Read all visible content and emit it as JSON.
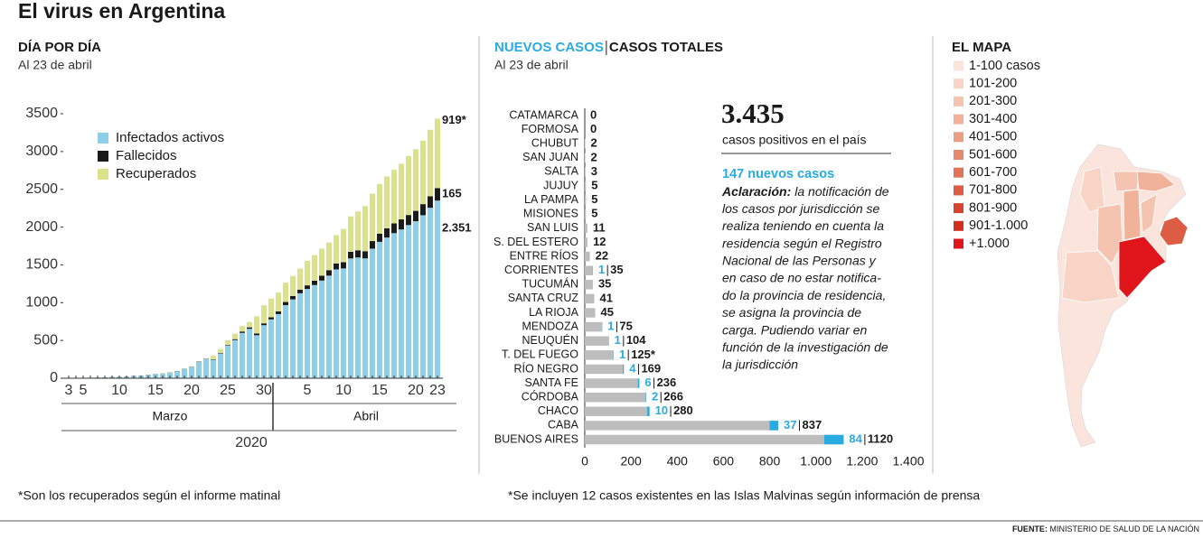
{
  "title": "El virus en Argentina",
  "chart_data": [
    {
      "type": "bar",
      "stacked": true,
      "title": "DÍA POR DÍA",
      "subtitle": "Al 23 de abril",
      "categories": [
        "3",
        null,
        "5",
        null,
        null,
        null,
        null,
        "10",
        null,
        null,
        null,
        null,
        "15",
        null,
        null,
        null,
        null,
        "20",
        null,
        null,
        null,
        null,
        "25",
        null,
        null,
        null,
        null,
        "30",
        null,
        null,
        null,
        null,
        null,
        "5",
        null,
        null,
        null,
        null,
        "10",
        null,
        null,
        null,
        null,
        "15",
        null,
        null,
        null,
        null,
        "20",
        null,
        null,
        "23"
      ],
      "periods": [
        "Marzo",
        "Abril"
      ],
      "year": "2020",
      "series": [
        {
          "name": "Infectados activos",
          "color": "#8dcfe9",
          "values": [
            1,
            1,
            2,
            8,
            8,
            11,
            15,
            17,
            19,
            29,
            32,
            42,
            53,
            60,
            74,
            91,
            121,
            150,
            216,
            255,
            244,
            329,
            431,
            505,
            600,
            654,
            569,
            702,
            779,
            849,
            967,
            1043,
            1124,
            1181,
            1233,
            1292,
            1358,
            1440,
            1453,
            1585,
            1598,
            1586,
            1715,
            1805,
            1862,
            1920,
            1969,
            2027,
            2078,
            2157,
            2256,
            2351
          ],
          "value_labels": [
            null,
            null,
            null,
            null,
            null,
            null,
            null,
            null,
            null,
            null,
            null,
            null,
            null,
            null,
            null,
            null,
            null,
            null,
            null,
            null,
            null,
            null,
            null,
            null,
            null,
            null,
            null,
            null,
            null,
            null,
            null,
            null,
            null,
            null,
            null,
            null,
            null,
            null,
            null,
            null,
            null,
            null,
            null,
            null,
            null,
            null,
            null,
            null,
            null,
            null,
            null,
            "2.351"
          ]
        },
        {
          "name": "Fallecidos",
          "color": "#1a1a1a",
          "values": [
            0,
            0,
            0,
            0,
            1,
            1,
            2,
            2,
            2,
            2,
            2,
            2,
            2,
            2,
            2,
            3,
            3,
            3,
            4,
            4,
            6,
            6,
            8,
            12,
            18,
            19,
            23,
            24,
            27,
            36,
            42,
            44,
            48,
            48,
            57,
            65,
            72,
            79,
            82,
            89,
            95,
            95,
            100,
            109,
            122,
            129,
            133,
            133,
            137,
            147,
            152,
            165
          ]
        },
        {
          "name": "Recuperados",
          "color": "#dbe28c",
          "values": [
            0,
            0,
            0,
            0,
            0,
            0,
            0,
            0,
            0,
            0,
            0,
            1,
            1,
            3,
            3,
            3,
            4,
            5,
            5,
            7,
            51,
            52,
            63,
            72,
            72,
            72,
            228,
            240,
            248,
            248,
            256,
            266,
            279,
            325,
            338,
            358,
            365,
            375,
            440,
            468,
            515,
            596,
            628,
            657,
            685,
            709,
            737,
            781,
            816,
            840,
            880,
            919
          ],
          "value_labels": [
            null,
            null,
            null,
            null,
            null,
            null,
            null,
            null,
            null,
            null,
            null,
            null,
            null,
            null,
            null,
            null,
            null,
            null,
            null,
            null,
            null,
            null,
            null,
            null,
            null,
            null,
            null,
            null,
            null,
            null,
            null,
            null,
            null,
            null,
            null,
            null,
            null,
            null,
            null,
            null,
            null,
            null,
            null,
            null,
            null,
            null,
            null,
            null,
            null,
            null,
            null,
            "919*"
          ]
        }
      ],
      "ylim": [
        0,
        3500
      ],
      "yticks": [
        0,
        500,
        1000,
        1500,
        2000,
        2500,
        3000,
        3500
      ],
      "note": "*Son los recuperados según el informe matinal"
    },
    {
      "type": "bar",
      "horizontal": true,
      "subtitle": "Al 23 de abril",
      "categories": [
        "CATAMARCA",
        "FORMOSA",
        "CHUBUT",
        "SAN JUAN",
        "SALTA",
        "JUJUY",
        "LA PAMPA",
        "MISIONES",
        "SAN LUIS",
        "S. DEL ESTERO",
        "ENTRE RÍOS",
        "CORRIENTES",
        "TUCUMÁN",
        "SANTA CRUZ",
        "LA RIOJA",
        "MENDOZA",
        "NEUQUÉN",
        "T. DEL FUEGO",
        "RÍO NEGRO",
        "SANTA FE",
        "CÓRDOBA",
        "CHACO",
        "CABA",
        "BUENOS AIRES"
      ],
      "series": [
        {
          "name": "NUEVOS CASOS",
          "color": "#29abe2",
          "values": [
            null,
            null,
            null,
            null,
            null,
            null,
            null,
            null,
            null,
            null,
            null,
            1,
            null,
            null,
            null,
            1,
            1,
            1,
            4,
            6,
            2,
            10,
            37,
            84
          ]
        },
        {
          "name": "CASOS TOTALES",
          "color": "#bdbdbd",
          "values": [
            0,
            0,
            2,
            2,
            3,
            5,
            5,
            5,
            11,
            12,
            22,
            35,
            35,
            41,
            45,
            75,
            104,
            125,
            169,
            236,
            266,
            280,
            837,
            1120
          ],
          "value_labels": [
            null,
            null,
            null,
            null,
            null,
            null,
            null,
            null,
            null,
            null,
            null,
            null,
            null,
            null,
            null,
            null,
            null,
            "125*",
            null,
            null,
            null,
            null,
            null,
            null
          ]
        }
      ],
      "xlim": [
        0,
        1400
      ],
      "xticks": [
        0,
        200,
        400,
        600,
        800,
        {
          "value": 1000,
          "label": "1.000"
        },
        {
          "value": 1200,
          "label": "1.200"
        },
        {
          "value": 1400,
          "label": "1.400"
        }
      ],
      "note": "*Se incluyen 12 casos existentes en las Islas Malvinas según información de prensa"
    }
  ],
  "highlight": {
    "total": "3.435",
    "total_caption": "casos positivos en el país",
    "new": "147 nuevos casos",
    "note_label": "Aclaración:",
    "note_lines": [
      "la notificación de",
      "los casos por jurisdicción se",
      "realiza teniendo en cuenta la",
      "residencia según el Registro",
      "Nacional de las Personas y",
      "en caso de no estar notifica-",
      "do la provincia de residencia,",
      "se asigna la provincia de",
      "carga. Pudiendo variar en",
      "función de la investigación de",
      "la jurisdicción"
    ]
  },
  "map": {
    "title": "EL MAPA",
    "legend": [
      {
        "label": "1-100 casos",
        "color": "#fbe4db"
      },
      {
        "label": "101-200",
        "color": "#f8d4c6"
      },
      {
        "label": "201-300",
        "color": "#f5c4b0"
      },
      {
        "label": "301-400",
        "color": "#f1b29a"
      },
      {
        "label": "401-500",
        "color": "#ec9e84"
      },
      {
        "label": "501-600",
        "color": "#e7896e"
      },
      {
        "label": "601-700",
        "color": "#e27358"
      },
      {
        "label": "701-800",
        "color": "#dc5c44"
      },
      {
        "label": "801-900",
        "color": "#d6442f"
      },
      {
        "label": "901-1.000",
        "color": "#d2301f"
      },
      {
        "label": "+1.000",
        "color": "#e0141b"
      }
    ]
  },
  "source_label": "FUENTE:",
  "source": "MINISTERIO DE SALUD DE LA NACIÓN"
}
